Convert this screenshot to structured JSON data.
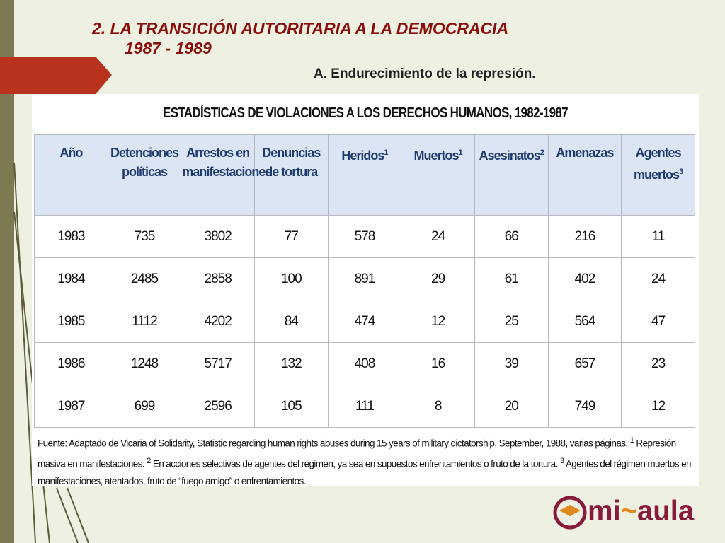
{
  "slide": {
    "title_lines": [
      "2.  LA  TRANSICIÓN  AUTORITARIA  A  LA  DEMOCRACIA",
      "1987 - 1989"
    ],
    "subtitle": "A. Endurecimiento de la represión."
  },
  "table": {
    "title": "ESTADÍSTICAS DE VIOLACIONES A LOS DERECHOS HUMANOS, 1982-1987",
    "headers": [
      {
        "text": "Año"
      },
      {
        "text": "Detenciones políticas"
      },
      {
        "text": "Arrestos en manifestaciones"
      },
      {
        "text": "Denuncias de tortura"
      },
      {
        "text": "Heridos",
        "sup": "1"
      },
      {
        "text": "Muertos",
        "sup": "1"
      },
      {
        "text": "Asesinatos",
        "sup": "2"
      },
      {
        "text": "Amenazas"
      },
      {
        "text": "Agentes muertos",
        "sup": "3"
      }
    ],
    "rows": [
      [
        1983,
        735,
        3802,
        77,
        578,
        24,
        66,
        216,
        11
      ],
      [
        1984,
        2485,
        2858,
        100,
        891,
        29,
        61,
        402,
        24
      ],
      [
        1985,
        1112,
        4202,
        84,
        474,
        12,
        25,
        564,
        47
      ],
      [
        1986,
        1248,
        5717,
        132,
        408,
        16,
        39,
        657,
        23
      ],
      [
        1987,
        699,
        2596,
        105,
        111,
        8,
        20,
        749,
        12
      ]
    ],
    "source": "Fuente: Adaptado de Vicaria of Solidarity, Statistic regarding human rights abuses during 15 years of military dictatorship, September, 1988, varias páginas.",
    "notes": [
      {
        "mark": "1",
        "text": "Represión masiva en manifestaciones."
      },
      {
        "mark": "2",
        "text": "En acciones selectivas de agentes del régimen, ya sea en supuestos enfrentamientos o fruto de la tortura."
      },
      {
        "mark": "3",
        "text": "Agentes del régimen muertos en manifestaciones, atentados, fruto de “fuego amigo” o enfrentamientos."
      }
    ]
  },
  "logo": {
    "left": "mi",
    "right": "aula"
  }
}
